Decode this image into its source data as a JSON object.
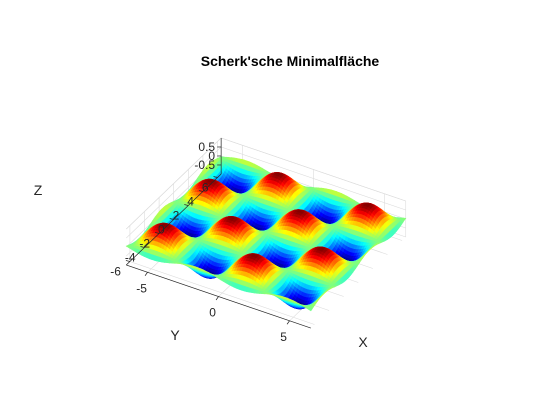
{
  "chart_data": {
    "type": "surface",
    "title": "Scherk'sche Minimalfläche",
    "xlabel": "X",
    "ylabel": "Y",
    "zlabel": "Z",
    "xlim": [
      -6.5,
      6.5
    ],
    "ylim": [
      -6.5,
      6.5
    ],
    "zlim": [
      -1,
      1
    ],
    "xticks": [
      {
        "value": -5,
        "label": "-5"
      },
      {
        "value": 0,
        "label": "0"
      },
      {
        "value": 5,
        "label": "5"
      }
    ],
    "yticks": [
      {
        "value": 6,
        "label": "6"
      },
      {
        "value": 4,
        "label": "4"
      },
      {
        "value": 2,
        "label": "2"
      },
      {
        "value": 0,
        "label": "0"
      },
      {
        "value": -2,
        "label": "-2"
      },
      {
        "value": -4,
        "label": "-4"
      },
      {
        "value": -6,
        "label": "-6"
      }
    ],
    "zticks": [
      {
        "value": 0.5,
        "label": "0.5"
      },
      {
        "value": 0,
        "label": "0"
      },
      {
        "value": -0.5,
        "label": "-0.5"
      }
    ],
    "surface": {
      "function": "z = sin(x) * sin(y)",
      "x_range": [
        -6.5,
        6.5
      ],
      "y_range": [
        -6.5,
        6.5
      ],
      "colormap": "jet",
      "shading": "interp"
    },
    "grid": true
  }
}
